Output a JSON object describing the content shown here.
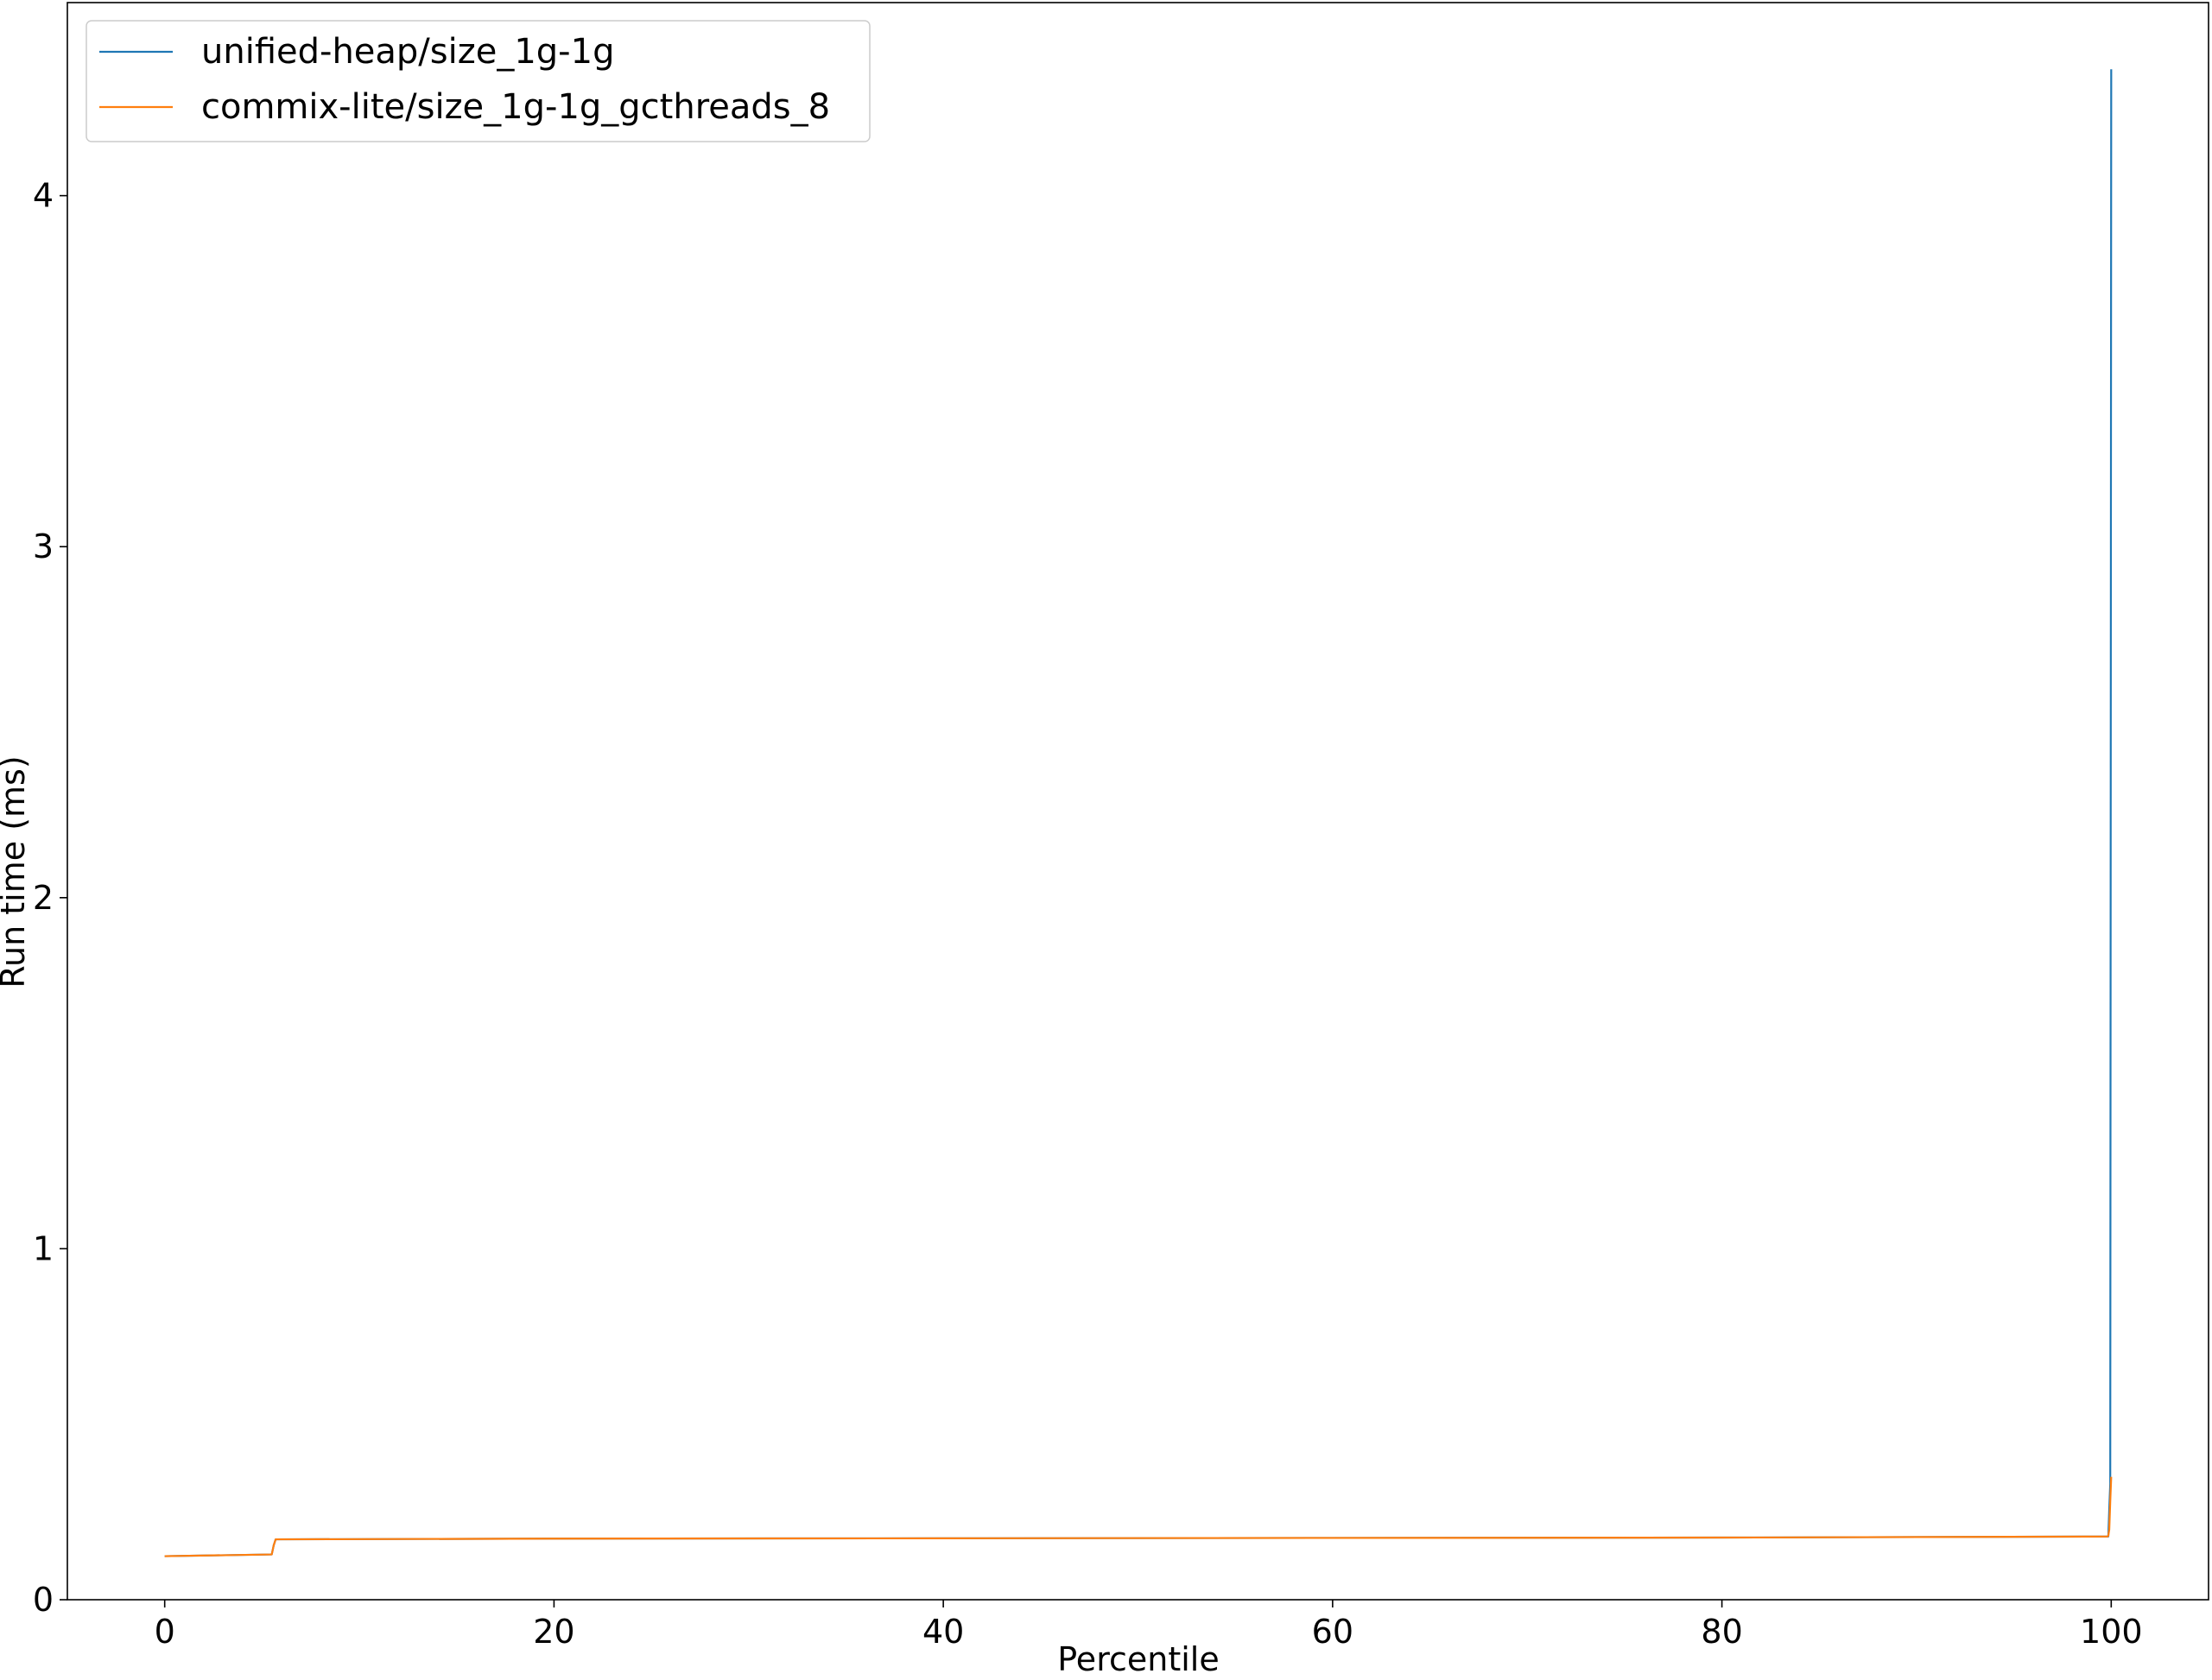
{
  "chart_data": {
    "type": "line",
    "title": "",
    "xlabel": "Percentile",
    "ylabel": "Run time (ms)",
    "xlim": [
      -5,
      105
    ],
    "ylim": [
      0,
      4.55
    ],
    "xticks": [
      0,
      20,
      40,
      60,
      80,
      100
    ],
    "yticks": [
      0,
      1,
      2,
      3,
      4
    ],
    "grid": false,
    "legend_position": "upper left",
    "series": [
      {
        "name": "unified-heap/size_1g-1g",
        "color": "#1f77b4",
        "x": [
          0,
          5.5,
          5.6,
          5.7,
          20,
          40,
          60,
          80,
          99.8,
          99.85,
          99.9,
          99.95,
          100
        ],
        "y": [
          0.124,
          0.129,
          0.155,
          0.172,
          0.174,
          0.175,
          0.176,
          0.177,
          0.18,
          0.18,
          0.26,
          0.33,
          4.36
        ]
      },
      {
        "name": "commix-lite/size_1g-1g_gcthreads_8",
        "color": "#ff7f0e",
        "x": [
          0,
          5.5,
          5.6,
          5.7,
          20,
          40,
          60,
          80,
          99.8,
          99.85,
          99.9,
          99.95,
          100
        ],
        "y": [
          0.124,
          0.129,
          0.155,
          0.172,
          0.174,
          0.175,
          0.176,
          0.177,
          0.18,
          0.182,
          0.2,
          0.28,
          0.35
        ]
      }
    ]
  }
}
